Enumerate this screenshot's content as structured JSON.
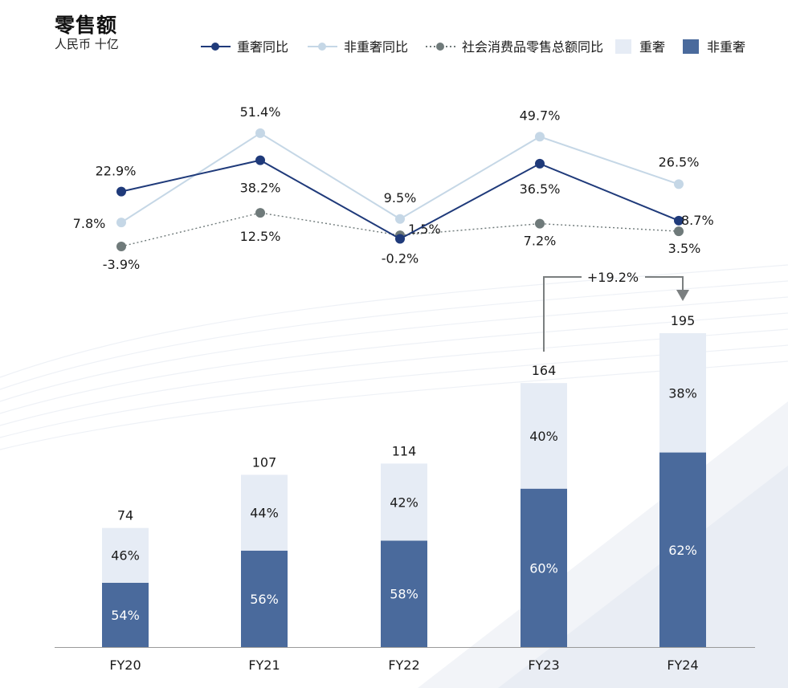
{
  "chart_data": {
    "type": "bar",
    "title": "零售额",
    "subtitle": "人民币  十亿",
    "categories": [
      "FY20",
      "FY21",
      "FY22",
      "FY23",
      "FY24"
    ],
    "totals": [
      74,
      107,
      114,
      164,
      195
    ],
    "bar_series": [
      {
        "name": "非重奢",
        "values": [
          54,
          56,
          58,
          60,
          62
        ],
        "labels": [
          "54%",
          "56%",
          "58%",
          "60%",
          "62%"
        ],
        "color": "#4a6a9c"
      },
      {
        "name": "重奢",
        "values": [
          46,
          44,
          42,
          40,
          38
        ],
        "labels": [
          "46%",
          "44%",
          "42%",
          "40%",
          "38%"
        ],
        "color": "#e6ecf5"
      }
    ],
    "line_series": [
      {
        "name": "重奢同比",
        "values": [
          22.9,
          38.2,
          -0.2,
          36.5,
          8.7
        ],
        "labels": [
          "22.9%",
          "38.2%",
          "-0.2%",
          "36.5%",
          "8.7%"
        ],
        "color": "#1f3a7a",
        "style": "solid"
      },
      {
        "name": "非重奢同比",
        "values": [
          7.8,
          51.4,
          9.5,
          49.7,
          26.5
        ],
        "labels": [
          "7.8%",
          "51.4%",
          "9.5%",
          "49.7%",
          "26.5%"
        ],
        "color": "#c5d7e6",
        "style": "solid"
      },
      {
        "name": "社会消费品零售总额同比",
        "values": [
          -3.9,
          12.5,
          1.5,
          7.2,
          3.5
        ],
        "labels": [
          "-3.9%",
          "12.5%",
          "1.5%",
          "7.2%",
          "3.5%"
        ],
        "color": "#6f7a7a",
        "style": "dotted"
      }
    ],
    "legend": [
      "重奢同比",
      "非重奢同比",
      "社会消费品零售总额同比",
      "重奢",
      "非重奢"
    ],
    "legend_position": "top-right",
    "annotation": "+19.2%",
    "grid": false
  }
}
